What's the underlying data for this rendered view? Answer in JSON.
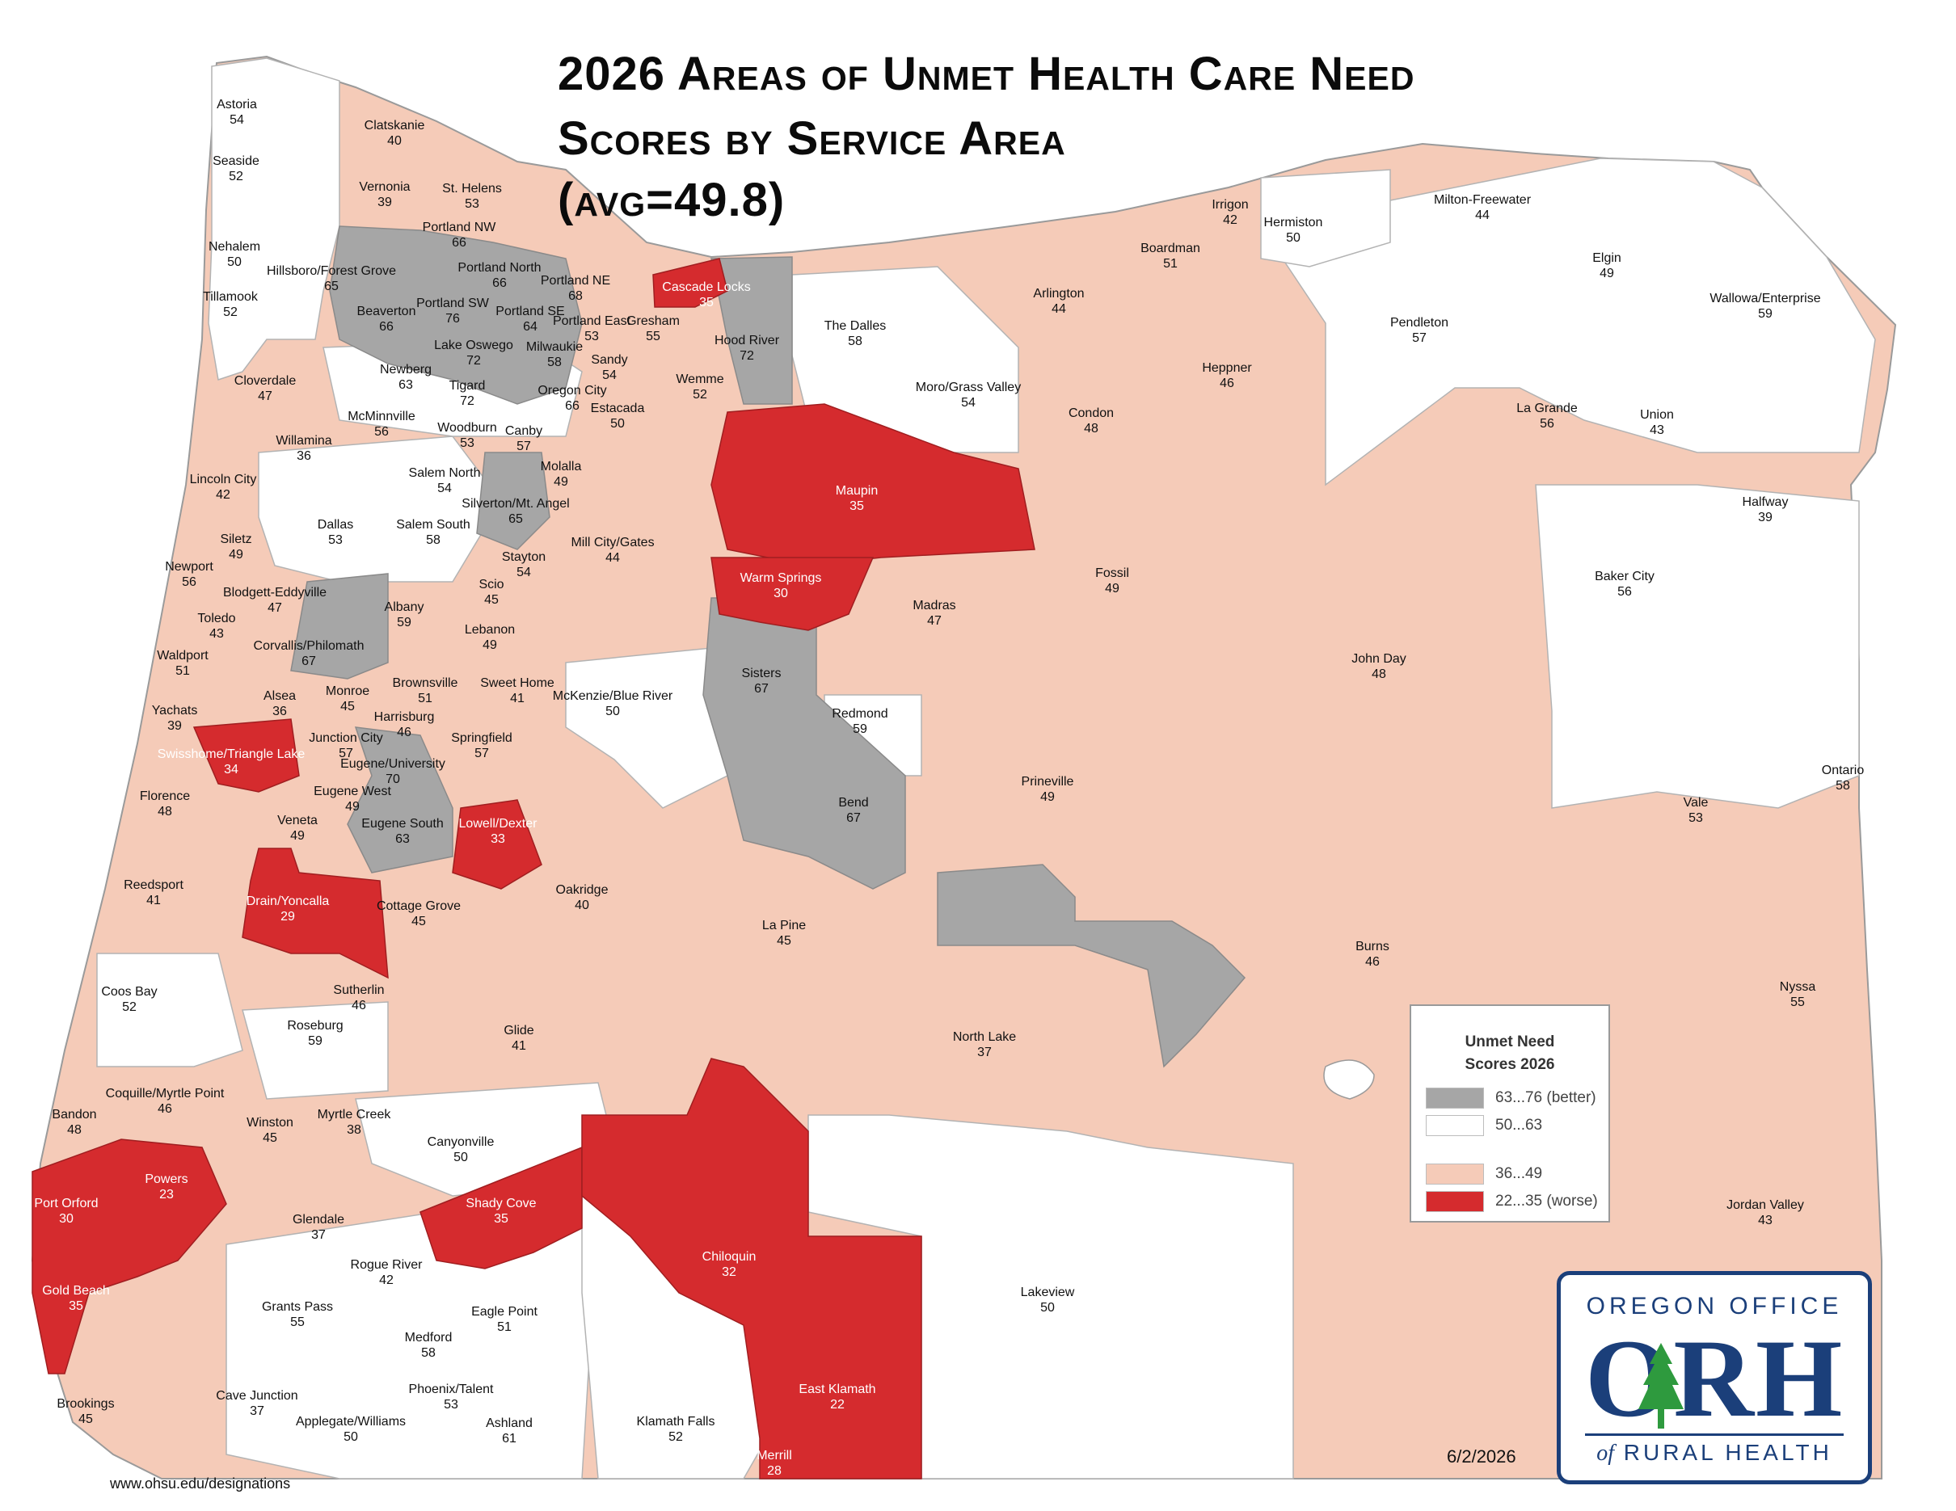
{
  "title": {
    "line1": "2026 Areas of Unmet Health Care Need",
    "line2": "Scores by Service Area",
    "line3": "(avg=49.8)"
  },
  "colors": {
    "better": "#a6a6a6",
    "neutral": "#ffffff",
    "low": "#f5cbb8",
    "worse": "#d52b2e",
    "border": "#9a9a9a",
    "brand": "#1b3f7a"
  },
  "legend": {
    "title_line1": "Unmet Need",
    "title_line2": "Scores 2026",
    "items": [
      {
        "label": "63...76 (better)",
        "color": "#a6a6a6"
      },
      {
        "label": "50...63",
        "color": "#ffffff"
      },
      {
        "label": "36...49",
        "color": "#f5cbb8"
      },
      {
        "label": "22...35 (worse)",
        "color": "#d52b2e"
      }
    ]
  },
  "areas": [
    {
      "name": "Astoria",
      "score": "54"
    },
    {
      "name": "Clatskanie",
      "score": "40"
    },
    {
      "name": "Seaside",
      "score": "52"
    },
    {
      "name": "Vernonia",
      "score": "39"
    },
    {
      "name": "St. Helens",
      "score": "53"
    },
    {
      "name": "Portland NW",
      "score": "66"
    },
    {
      "name": "Nehalem",
      "score": "50"
    },
    {
      "name": "Hillsboro/Forest Grove",
      "score": "65"
    },
    {
      "name": "Portland North",
      "score": "66"
    },
    {
      "name": "Portland NE",
      "score": "68"
    },
    {
      "name": "Tillamook",
      "score": "52"
    },
    {
      "name": "Beaverton",
      "score": "66"
    },
    {
      "name": "Portland SW",
      "score": "76"
    },
    {
      "name": "Portland SE",
      "score": "64"
    },
    {
      "name": "Portland East",
      "score": "53"
    },
    {
      "name": "Gresham",
      "score": "55"
    },
    {
      "name": "Cascade Locks",
      "score": "35"
    },
    {
      "name": "Hood River",
      "score": "72"
    },
    {
      "name": "The Dalles",
      "score": "58"
    },
    {
      "name": "Lake Oswego",
      "score": "72"
    },
    {
      "name": "Milwaukie",
      "score": "58"
    },
    {
      "name": "Sandy",
      "score": "54"
    },
    {
      "name": "Newberg",
      "score": "63"
    },
    {
      "name": "Tigard",
      "score": "72"
    },
    {
      "name": "Oregon City",
      "score": "66"
    },
    {
      "name": "Wemme",
      "score": "52"
    },
    {
      "name": "Estacada",
      "score": "50"
    },
    {
      "name": "Cloverdale",
      "score": "47"
    },
    {
      "name": "McMinnville",
      "score": "56"
    },
    {
      "name": "Woodburn",
      "score": "53"
    },
    {
      "name": "Canby",
      "score": "57"
    },
    {
      "name": "Willamina",
      "score": "36"
    },
    {
      "name": "Lincoln City",
      "score": "42"
    },
    {
      "name": "Salem North",
      "score": "54"
    },
    {
      "name": "Molalla",
      "score": "49"
    },
    {
      "name": "Silverton/Mt. Angel",
      "score": "65"
    },
    {
      "name": "Dallas",
      "score": "53"
    },
    {
      "name": "Salem South",
      "score": "58"
    },
    {
      "name": "Siletz",
      "score": "49"
    },
    {
      "name": "Mill City/Gates",
      "score": "44"
    },
    {
      "name": "Stayton",
      "score": "54"
    },
    {
      "name": "Newport",
      "score": "56"
    },
    {
      "name": "Blodgett-Eddyville",
      "score": "47"
    },
    {
      "name": "Scio",
      "score": "45"
    },
    {
      "name": "Albany",
      "score": "59"
    },
    {
      "name": "Toledo",
      "score": "43"
    },
    {
      "name": "Lebanon",
      "score": "49"
    },
    {
      "name": "Corvallis/Philomath",
      "score": "67"
    },
    {
      "name": "Waldport",
      "score": "51"
    },
    {
      "name": "Sweet Home",
      "score": "41"
    },
    {
      "name": "Alsea",
      "score": "36"
    },
    {
      "name": "Monroe",
      "score": "45"
    },
    {
      "name": "Brownsville",
      "score": "51"
    },
    {
      "name": "McKenzie/Blue River",
      "score": "50"
    },
    {
      "name": "Yachats",
      "score": "39"
    },
    {
      "name": "Harrisburg",
      "score": "46"
    },
    {
      "name": "Junction City",
      "score": "57"
    },
    {
      "name": "Springfield",
      "score": "57"
    },
    {
      "name": "Swisshome/Triangle Lake",
      "score": "34"
    },
    {
      "name": "Eugene/University",
      "score": "70"
    },
    {
      "name": "Florence",
      "score": "48"
    },
    {
      "name": "Eugene West",
      "score": "49"
    },
    {
      "name": "Veneta",
      "score": "49"
    },
    {
      "name": "Eugene South",
      "score": "63"
    },
    {
      "name": "Lowell/Dexter",
      "score": "33"
    },
    {
      "name": "Oakridge",
      "score": "40"
    },
    {
      "name": "Reedsport",
      "score": "41"
    },
    {
      "name": "Drain/Yoncalla",
      "score": "29"
    },
    {
      "name": "Cottage Grove",
      "score": "45"
    },
    {
      "name": "Coos Bay",
      "score": "52"
    },
    {
      "name": "Sutherlin",
      "score": "46"
    },
    {
      "name": "Roseburg",
      "score": "59"
    },
    {
      "name": "Glide",
      "score": "41"
    },
    {
      "name": "Coquille/Myrtle Point",
      "score": "46"
    },
    {
      "name": "Bandon",
      "score": "48"
    },
    {
      "name": "Winston",
      "score": "45"
    },
    {
      "name": "Myrtle Creek",
      "score": "38"
    },
    {
      "name": "Canyonville",
      "score": "50"
    },
    {
      "name": "Powers",
      "score": "23"
    },
    {
      "name": "Port Orford",
      "score": "30"
    },
    {
      "name": "Shady Cove",
      "score": "35"
    },
    {
      "name": "Glendale",
      "score": "37"
    },
    {
      "name": "Rogue River",
      "score": "42"
    },
    {
      "name": "Gold Beach",
      "score": "35"
    },
    {
      "name": "Grants Pass",
      "score": "55"
    },
    {
      "name": "Eagle Point",
      "score": "51"
    },
    {
      "name": "Medford",
      "score": "58"
    },
    {
      "name": "Phoenix/Talent",
      "score": "53"
    },
    {
      "name": "Brookings",
      "score": "45"
    },
    {
      "name": "Cave Junction",
      "score": "37"
    },
    {
      "name": "Applegate/Williams",
      "score": "50"
    },
    {
      "name": "Ashland",
      "score": "61"
    },
    {
      "name": "Chiloquin",
      "score": "32"
    },
    {
      "name": "Klamath Falls",
      "score": "52"
    },
    {
      "name": "East Klamath",
      "score": "22"
    },
    {
      "name": "Merrill",
      "score": "28"
    },
    {
      "name": "Lakeview",
      "score": "50"
    },
    {
      "name": "Maupin",
      "score": "35"
    },
    {
      "name": "Moro/Grass Valley",
      "score": "54"
    },
    {
      "name": "Warm Springs",
      "score": "30"
    },
    {
      "name": "Madras",
      "score": "47"
    },
    {
      "name": "Sisters",
      "score": "67"
    },
    {
      "name": "Redmond",
      "score": "59"
    },
    {
      "name": "Bend",
      "score": "67"
    },
    {
      "name": "La Pine",
      "score": "45"
    },
    {
      "name": "Prineville",
      "score": "49"
    },
    {
      "name": "North Lake",
      "score": "37"
    },
    {
      "name": "Arlington",
      "score": "44"
    },
    {
      "name": "Condon",
      "score": "48"
    },
    {
      "name": "Fossil",
      "score": "49"
    },
    {
      "name": "Boardman",
      "score": "51"
    },
    {
      "name": "Irrigon",
      "score": "42"
    },
    {
      "name": "Hermiston",
      "score": "50"
    },
    {
      "name": "Heppner",
      "score": "46"
    },
    {
      "name": "Milton-Freewater",
      "score": "44"
    },
    {
      "name": "Pendleton",
      "score": "57"
    },
    {
      "name": "Elgin",
      "score": "49"
    },
    {
      "name": "Wallowa/Enterprise",
      "score": "59"
    },
    {
      "name": "La Grande",
      "score": "56"
    },
    {
      "name": "Union",
      "score": "43"
    },
    {
      "name": "Halfway",
      "score": "39"
    },
    {
      "name": "Baker City",
      "score": "56"
    },
    {
      "name": "John Day",
      "score": "48"
    },
    {
      "name": "Ontario",
      "score": "58"
    },
    {
      "name": "Vale",
      "score": "53"
    },
    {
      "name": "Burns",
      "score": "46"
    },
    {
      "name": "Nyssa",
      "score": "55"
    },
    {
      "name": "Jordan Valley",
      "score": "43"
    }
  ],
  "logo": {
    "top": "OREGON OFFICE",
    "big": "ORH",
    "bottom_of": "of",
    "bottom": "RURAL HEALTH"
  },
  "date": "6/2/2026",
  "url": "www.ohsu.edu/designations"
}
